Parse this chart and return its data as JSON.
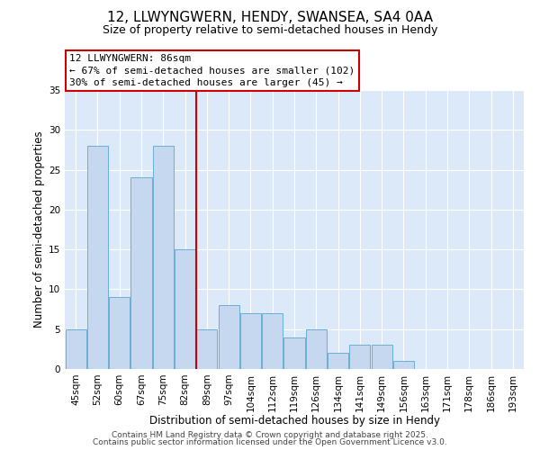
{
  "title1": "12, LLWYNGWERN, HENDY, SWANSEA, SA4 0AA",
  "title2": "Size of property relative to semi-detached houses in Hendy",
  "xlabel": "Distribution of semi-detached houses by size in Hendy",
  "ylabel": "Number of semi-detached properties",
  "categories": [
    "45sqm",
    "52sqm",
    "60sqm",
    "67sqm",
    "75sqm",
    "82sqm",
    "89sqm",
    "97sqm",
    "104sqm",
    "112sqm",
    "119sqm",
    "126sqm",
    "134sqm",
    "141sqm",
    "149sqm",
    "156sqm",
    "163sqm",
    "171sqm",
    "178sqm",
    "186sqm",
    "193sqm"
  ],
  "values": [
    5,
    28,
    9,
    24,
    28,
    15,
    5,
    8,
    7,
    7,
    4,
    5,
    2,
    3,
    3,
    1,
    0,
    0,
    0,
    0,
    0
  ],
  "bar_color": "#c5d8f0",
  "bar_edge_color": "#6baed6",
  "vline_x": 5.5,
  "vline_color": "#cc0000",
  "annotation_line1": "12 LLWYNGWERN: 86sqm",
  "annotation_line2": "← 67% of semi-detached houses are smaller (102)",
  "annotation_line3": "30% of semi-detached houses are larger (45) →",
  "annotation_box_color": "#ffffff",
  "annotation_box_edge_color": "#cc0000",
  "ylim": [
    0,
    35
  ],
  "yticks": [
    0,
    5,
    10,
    15,
    20,
    25,
    30,
    35
  ],
  "bg_color": "#dce9f8",
  "footer_text1": "Contains HM Land Registry data © Crown copyright and database right 2025.",
  "footer_text2": "Contains public sector information licensed under the Open Government Licence v3.0.",
  "title1_fontsize": 11,
  "title2_fontsize": 9,
  "xlabel_fontsize": 8.5,
  "ylabel_fontsize": 8.5,
  "tick_fontsize": 7.5,
  "annotation_fontsize": 8,
  "footer_fontsize": 6.5
}
